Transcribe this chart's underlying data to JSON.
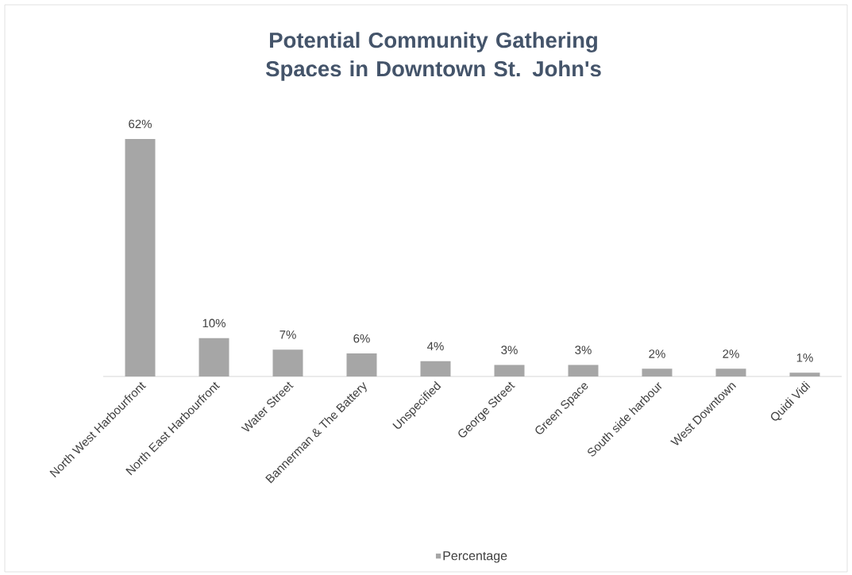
{
  "chart_data": {
    "type": "bar",
    "title": "Potential Community Gathering Spaces in Downtown St. John's",
    "categories": [
      "North West Harbourfront",
      "North East Harbourfront",
      "Water Street",
      "Bannerman & The Battery",
      "Unspecified",
      "George Street",
      "Green Space",
      "South side harbour",
      "West Downtown",
      "Quidi Vidi"
    ],
    "series": [
      {
        "name": "Percentage",
        "color": "#a6a6a6",
        "values": [
          62,
          10,
          7,
          6,
          4,
          3,
          3,
          2,
          2,
          1
        ],
        "value_labels": [
          "62%",
          "10%",
          "7%",
          "6%",
          "4%",
          "3%",
          "3%",
          "2%",
          "2%",
          "1%"
        ]
      }
    ],
    "legend": "bottom"
  }
}
